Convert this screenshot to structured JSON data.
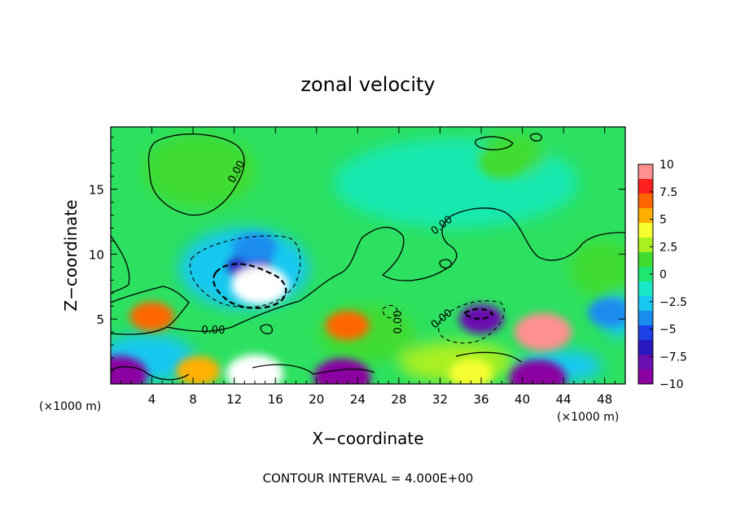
{
  "chart_data": {
    "type": "heatmap",
    "title": "zonal velocity",
    "xlabel": "X−coordinate",
    "ylabel": "Z−coordinate",
    "x_unit": "(×1000 m)",
    "y_unit": "(×1000 m)",
    "xlim": [
      0,
      50
    ],
    "ylim": [
      0,
      19.8
    ],
    "x_ticks": [
      4,
      8,
      12,
      16,
      20,
      24,
      28,
      32,
      36,
      40,
      44,
      48
    ],
    "y_ticks": [
      5,
      10,
      15
    ],
    "colorbar": {
      "range": [
        -10,
        10
      ],
      "ticks": [
        10,
        7.5,
        5,
        2.5,
        0,
        -2.5,
        -5,
        -7.5,
        -10
      ],
      "tick_labels": [
        "10",
        "7.5",
        "5",
        "2.5",
        "0",
        "−2.5",
        "−5",
        "−7.5",
        "−10"
      ],
      "colors": [
        "#ff9090",
        "#ff2020",
        "#ff6600",
        "#ffb000",
        "#f5ff30",
        "#a8f020",
        "#40dc30",
        "#1ee670",
        "#18e8c8",
        "#18c8f0",
        "#1a8cf0",
        "#1a40e6",
        "#2818c0",
        "#6a10b0",
        "#8a00a0"
      ]
    },
    "contour_interval": 4.0,
    "contour_labels": [
      "0.00",
      "0.00",
      "0.00",
      "0.00",
      "0.00"
    ],
    "features": [
      {
        "x": 0.8,
        "z": 0.7,
        "value": -9
      },
      {
        "x": 4,
        "z": 5.2,
        "value": 7
      },
      {
        "x": 13.5,
        "z": 9,
        "value": -7
      },
      {
        "x": 14.5,
        "z": 7.6,
        "value": -13
      },
      {
        "x": 14,
        "z": 0.8,
        "value": 12
      },
      {
        "x": 8.5,
        "z": 1,
        "value": 6
      },
      {
        "x": 23,
        "z": 4.5,
        "value": 7
      },
      {
        "x": 22.5,
        "z": 0.5,
        "value": -9
      },
      {
        "x": 36,
        "z": 5,
        "value": -8
      },
      {
        "x": 35,
        "z": 0.8,
        "value": 4
      },
      {
        "x": 42,
        "z": 4,
        "value": 9
      },
      {
        "x": 41.5,
        "z": 0.4,
        "value": -9
      },
      {
        "x": 48.5,
        "z": 5.5,
        "value": -4
      },
      {
        "x": 14,
        "z": 10.5,
        "value": -4
      },
      {
        "x": 38,
        "z": 17,
        "value": 1
      }
    ]
  },
  "footer": "CONTOUR INTERVAL = 4.000E+00"
}
